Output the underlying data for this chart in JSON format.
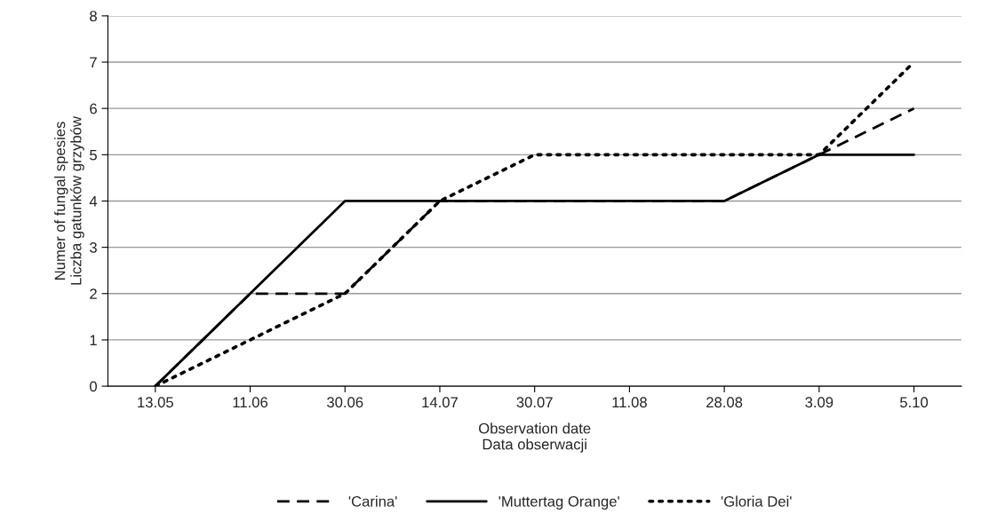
{
  "chart_data": {
    "type": "line",
    "xlabel": "Observation date\nData obserwacji",
    "ylabel": "Numer of fungal spesies\nLiczba gatunków grzybów",
    "categories": [
      "13.05",
      "11.06",
      "30.06",
      "14.07",
      "30.07",
      "11.08",
      "28.08",
      "3.09",
      "5.10"
    ],
    "series": [
      {
        "name": "'Carina'",
        "color": "#000000",
        "line_style": "dashed",
        "values": [
          0,
          2,
          2,
          4,
          4,
          4,
          4,
          5,
          6
        ]
      },
      {
        "name": "'Muttertag Orange'",
        "color": "#000000",
        "line_style": "solid",
        "values": [
          0,
          2,
          4,
          4,
          4,
          4,
          4,
          5,
          5
        ]
      },
      {
        "name": "'Gloria Dei'",
        "color": "#000000",
        "line_style": "dotted",
        "values": [
          0,
          1,
          2,
          4,
          5,
          5,
          5,
          5,
          7
        ]
      }
    ],
    "ylim": [
      0,
      8
    ],
    "yticks": [
      0,
      1,
      2,
      3,
      4,
      5,
      6,
      7,
      8
    ],
    "grid": "y",
    "legend": "bottom"
  }
}
